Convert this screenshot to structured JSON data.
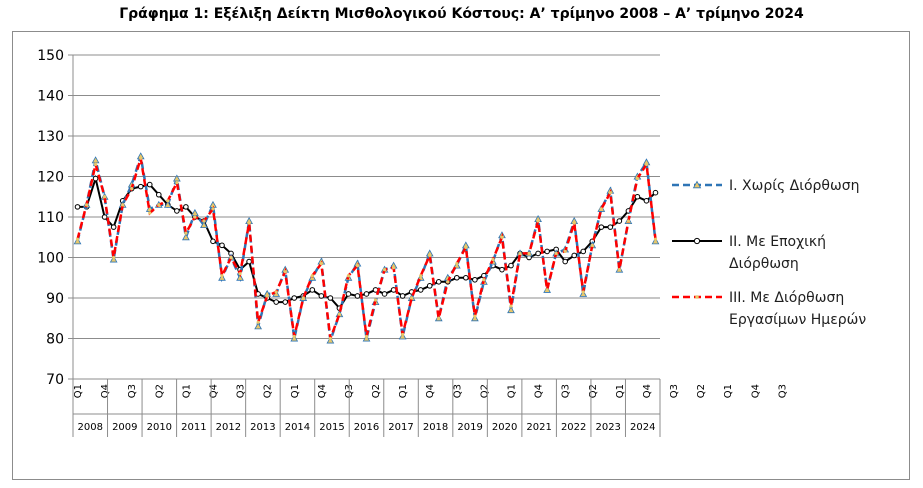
{
  "chart_data": {
    "type": "line",
    "title": "Γράφημα 1: Εξέλιξη Δείκτη Μισθολογικού Κόστους:  Α’ τρίμηνο 2008 – Α’ τρίμηνο 2024",
    "xlabel": "",
    "ylabel": "",
    "ylim": [
      70,
      150
    ],
    "yticks": [
      "150",
      "140",
      "130",
      "120",
      "110",
      "100",
      "90",
      "80",
      "70"
    ],
    "grid": true,
    "legend_position": "right",
    "quarter_labels": [
      "Q1",
      "Q4",
      "Q3",
      "Q2",
      "Q1",
      "Q4",
      "Q3",
      "Q2",
      "Q1",
      "Q4",
      "Q3",
      "Q2",
      "Q1",
      "Q4",
      "Q3",
      "Q2",
      "Q1",
      "Q4",
      "Q3",
      "Q2",
      "Q1",
      "Q4",
      "Q3",
      "Q2",
      "Q1",
      "Q4",
      "Q3"
    ],
    "years": [
      "2008",
      "2009",
      "2010",
      "2011",
      "2012",
      "2013",
      "2014",
      "2015",
      "2016",
      "2017",
      "2018",
      "2019",
      "2020",
      "2021",
      "2022",
      "2023",
      "2024"
    ],
    "colors": {
      "series1": "#2e75b6",
      "series2": "#000000",
      "series3": "#ff0000",
      "marker_fill": "#e8c76a"
    },
    "series": [
      {
        "name": "I. Χωρίς Διόρθωση",
        "style": "dashed-triangle",
        "values": [
          104,
          113,
          124,
          115,
          99.5,
          113,
          118,
          125,
          112,
          113,
          113,
          119.5,
          105,
          111,
          108,
          113,
          95,
          100,
          95,
          109,
          83,
          91,
          91,
          97,
          80,
          90,
          95,
          99,
          79.5,
          86,
          95,
          98.5,
          80,
          89,
          97,
          98,
          80.5,
          90,
          95,
          101,
          85,
          95,
          98,
          103,
          85,
          94,
          99,
          105.5,
          87,
          101,
          101,
          109.5,
          92,
          101,
          102,
          109,
          91,
          103,
          112,
          116.5,
          97,
          109,
          120,
          123.5,
          104
        ]
      },
      {
        "name": "II. Με Εποχική Διόρθωση",
        "style": "solid-circle",
        "values": [
          112.5,
          112.5,
          119.5,
          110,
          107.5,
          114,
          117,
          117.5,
          118,
          115.5,
          113,
          111.5,
          112.5,
          110,
          109,
          104,
          103,
          101,
          97,
          99,
          91,
          90,
          89,
          89,
          90,
          90.5,
          92,
          90.5,
          90,
          87.5,
          91,
          90.5,
          91,
          92,
          91,
          92,
          90.5,
          91.5,
          92,
          93,
          94,
          94,
          95,
          95,
          94.5,
          95.5,
          98,
          97,
          98,
          101,
          100,
          101,
          101.5,
          102,
          99,
          100.5,
          101.5,
          104,
          107.5,
          107.5,
          109,
          111.5,
          115,
          114,
          116
        ]
      },
      {
        "name": "III. Με Διόρθωση Εργασίμων Ημερών",
        "style": "dashed",
        "values": [
          104.5,
          113,
          123,
          115,
          100,
          113,
          117,
          124.5,
          111,
          113,
          114,
          118.5,
          106,
          110,
          109,
          112,
          95.5,
          100,
          96,
          108.5,
          84,
          90.5,
          91.5,
          96.5,
          80.5,
          90,
          95.5,
          98.5,
          80,
          86,
          95.5,
          98,
          80.5,
          89.5,
          97,
          97.5,
          81,
          90,
          95.5,
          100.5,
          85,
          94,
          98.5,
          102.5,
          85.5,
          94.5,
          99.5,
          105,
          88,
          101,
          101,
          109,
          92,
          101,
          101.5,
          108.5,
          91.5,
          103,
          112,
          116,
          97,
          109,
          119.5,
          123,
          104.5
        ]
      }
    ]
  },
  "legend": [
    {
      "lines": [
        "I. Χωρίς Διόρθωση"
      ]
    },
    {
      "lines": [
        "II. Με Εποχική",
        "Διόρθωση"
      ]
    },
    {
      "lines": [
        "III. Με Διόρθωση",
        "Εργασίμων Ημερών"
      ]
    }
  ]
}
